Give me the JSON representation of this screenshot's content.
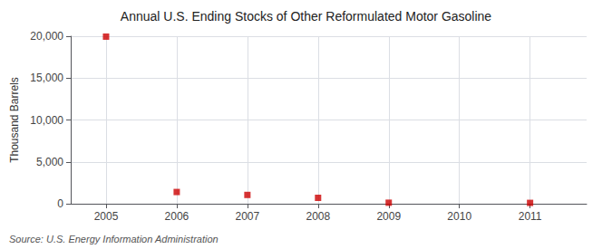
{
  "chart_data": {
    "type": "scatter",
    "title": "Annual U.S. Ending Stocks of Other Reformulated Motor Gasoline",
    "ylabel": "Thousand Barrels",
    "source": "Source: U.S. Energy Information Administration",
    "x": [
      2005,
      2006,
      2007,
      2008,
      2009,
      2011
    ],
    "values": [
      19950,
      1400,
      1050,
      700,
      120,
      100
    ],
    "color": "#cc0000",
    "marker": "square",
    "xlim": [
      2004.5,
      2011.8
    ],
    "xticks": [
      2005,
      2006,
      2007,
      2008,
      2009,
      2010,
      2011
    ],
    "ylim": [
      0,
      20000
    ],
    "yticks": [
      0,
      {
        "value": 5000,
        "label": "5,000"
      },
      {
        "value": 10000,
        "label": "10,000"
      },
      {
        "value": 15000,
        "label": "15,000"
      },
      {
        "value": 20000,
        "label": "20,000"
      }
    ],
    "grid": true
  }
}
